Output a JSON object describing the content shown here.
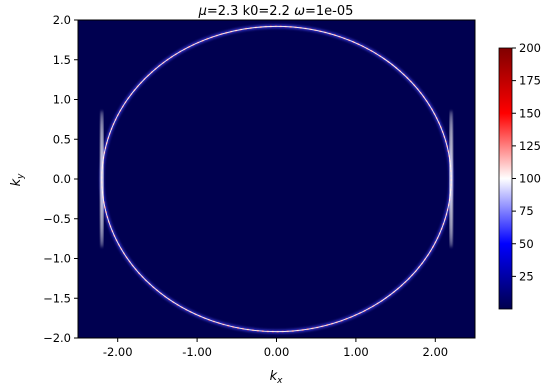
{
  "chart_data": {
    "type": "heatmap",
    "title": "μ=2.3 k0=2.2 ω=1e-05",
    "title_parts": {
      "mu_symbol": "μ",
      "mu_value": "=2.3 k0=2.2 ",
      "omega_symbol": "ω",
      "omega_value": "=1e-05"
    },
    "xlabel": "k",
    "xlabel_sub": "x",
    "ylabel": "k",
    "ylabel_sub": "y",
    "xlim": [
      -2.5,
      2.5
    ],
    "ylim": [
      -2.0,
      2.0
    ],
    "x_ticks": [
      -2.0,
      -1.0,
      0.0,
      1.0,
      2.0
    ],
    "x_tick_labels": [
      "-2.00",
      "-1.00",
      "0.00",
      "1.00",
      "2.00"
    ],
    "y_ticks": [
      2.0,
      1.5,
      1.0,
      0.5,
      0.0,
      -0.5,
      -1.0,
      -1.5,
      -2.0
    ],
    "y_tick_labels": [
      "2.0",
      "1.5",
      "1.0",
      "0.5",
      "0.0",
      "−0.5",
      "−1.0",
      "−1.5",
      "−2.0"
    ],
    "colorbar": {
      "min": 0,
      "max": 200,
      "ticks": [
        25,
        50,
        75,
        100,
        125,
        150,
        175,
        200
      ],
      "tick_labels": [
        "25",
        "50",
        "75",
        "100",
        "125",
        "150",
        "175",
        "200"
      ],
      "colormap": "seismic"
    },
    "feature": {
      "shape": "ellipse",
      "center": [
        0.0,
        0.0
      ],
      "semi_axis_x": 2.2,
      "semi_axis_y": 1.92,
      "background_value": 0
    },
    "grid": false
  },
  "colors": {
    "background_dark": "#000050",
    "ring_white": "#ffffff",
    "ring_red": "#ff3030",
    "ring_blue": "#4a4aff",
    "axis": "#000000"
  }
}
